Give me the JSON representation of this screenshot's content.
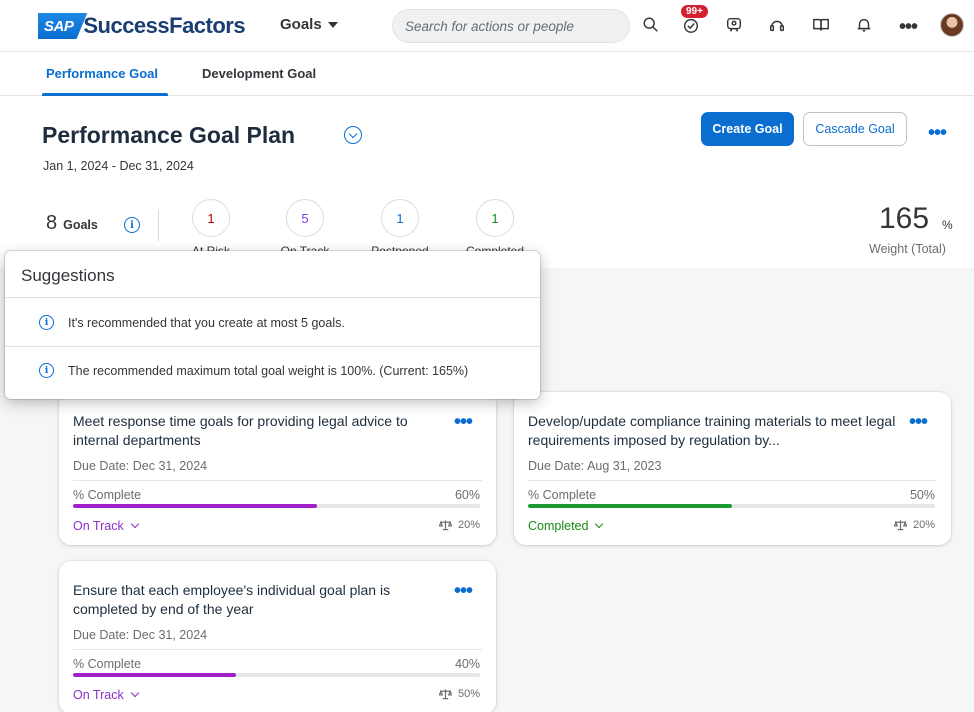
{
  "shell": {
    "logo_sap": "SAP",
    "logo_product": "SuccessFactors",
    "module_menu": "Goals",
    "search_placeholder": "Search for actions or people",
    "notification_badge": "99+",
    "icons": [
      "search-icon",
      "approvals-icon",
      "people-icon",
      "help-icon",
      "reading-icon",
      "notifications-icon",
      "more-icon"
    ]
  },
  "tabs": [
    {
      "label": "Performance Goal",
      "active": true
    },
    {
      "label": "Development Goal",
      "active": false
    }
  ],
  "header": {
    "title": "Performance Goal Plan",
    "date_range": "Jan 1, 2024 - Dec 31, 2024",
    "create_button": "Create Goal",
    "cascade_button": "Cascade Goal",
    "goal_count": "8",
    "goal_count_label": "Goals",
    "stats": [
      {
        "value": "1",
        "label": "At Risk",
        "color": "#bb0000"
      },
      {
        "value": "5",
        "label": "On Track",
        "color": "#7c3aed"
      },
      {
        "value": "1",
        "label": "Postponed",
        "color": "#0a6ed1"
      },
      {
        "value": "1",
        "label": "Completed",
        "color": "#188918"
      }
    ],
    "weight_total": "165",
    "weight_unit": "%",
    "weight_label": "Weight (Total)"
  },
  "suggestions": {
    "title": "Suggestions",
    "items": [
      "It's recommended that you create at most 5 goals.",
      "The recommended maximum total goal weight is 100%. (Current: 165%)"
    ]
  },
  "goals": [
    {
      "title": "Meet response time goals for providing legal advice to internal departments",
      "due": "Due Date: Dec 31, 2024",
      "percent_label": "% Complete",
      "percent": "60%",
      "progress": 0.6,
      "status": "On Track",
      "status_color": "#8b2fc9",
      "bar_color": "#a020c8",
      "weight": "20%"
    },
    {
      "title": "Develop/update compliance training materials to meet legal requirements imposed by regulation by...",
      "due": "Due Date: Aug 31, 2023",
      "percent_label": "% Complete",
      "percent": "50%",
      "progress": 0.5,
      "status": "Completed",
      "status_color": "#188918",
      "bar_color": "#1e9a35",
      "weight": "20%"
    },
    {
      "title": "Ensure that each employee's individual goal plan is completed by end of the year",
      "due": "Due Date: Dec 31, 2024",
      "percent_label": "% Complete",
      "percent": "40%",
      "progress": 0.4,
      "status": "On Track",
      "status_color": "#8b2fc9",
      "bar_color": "#a020c8",
      "weight": "50%"
    }
  ]
}
